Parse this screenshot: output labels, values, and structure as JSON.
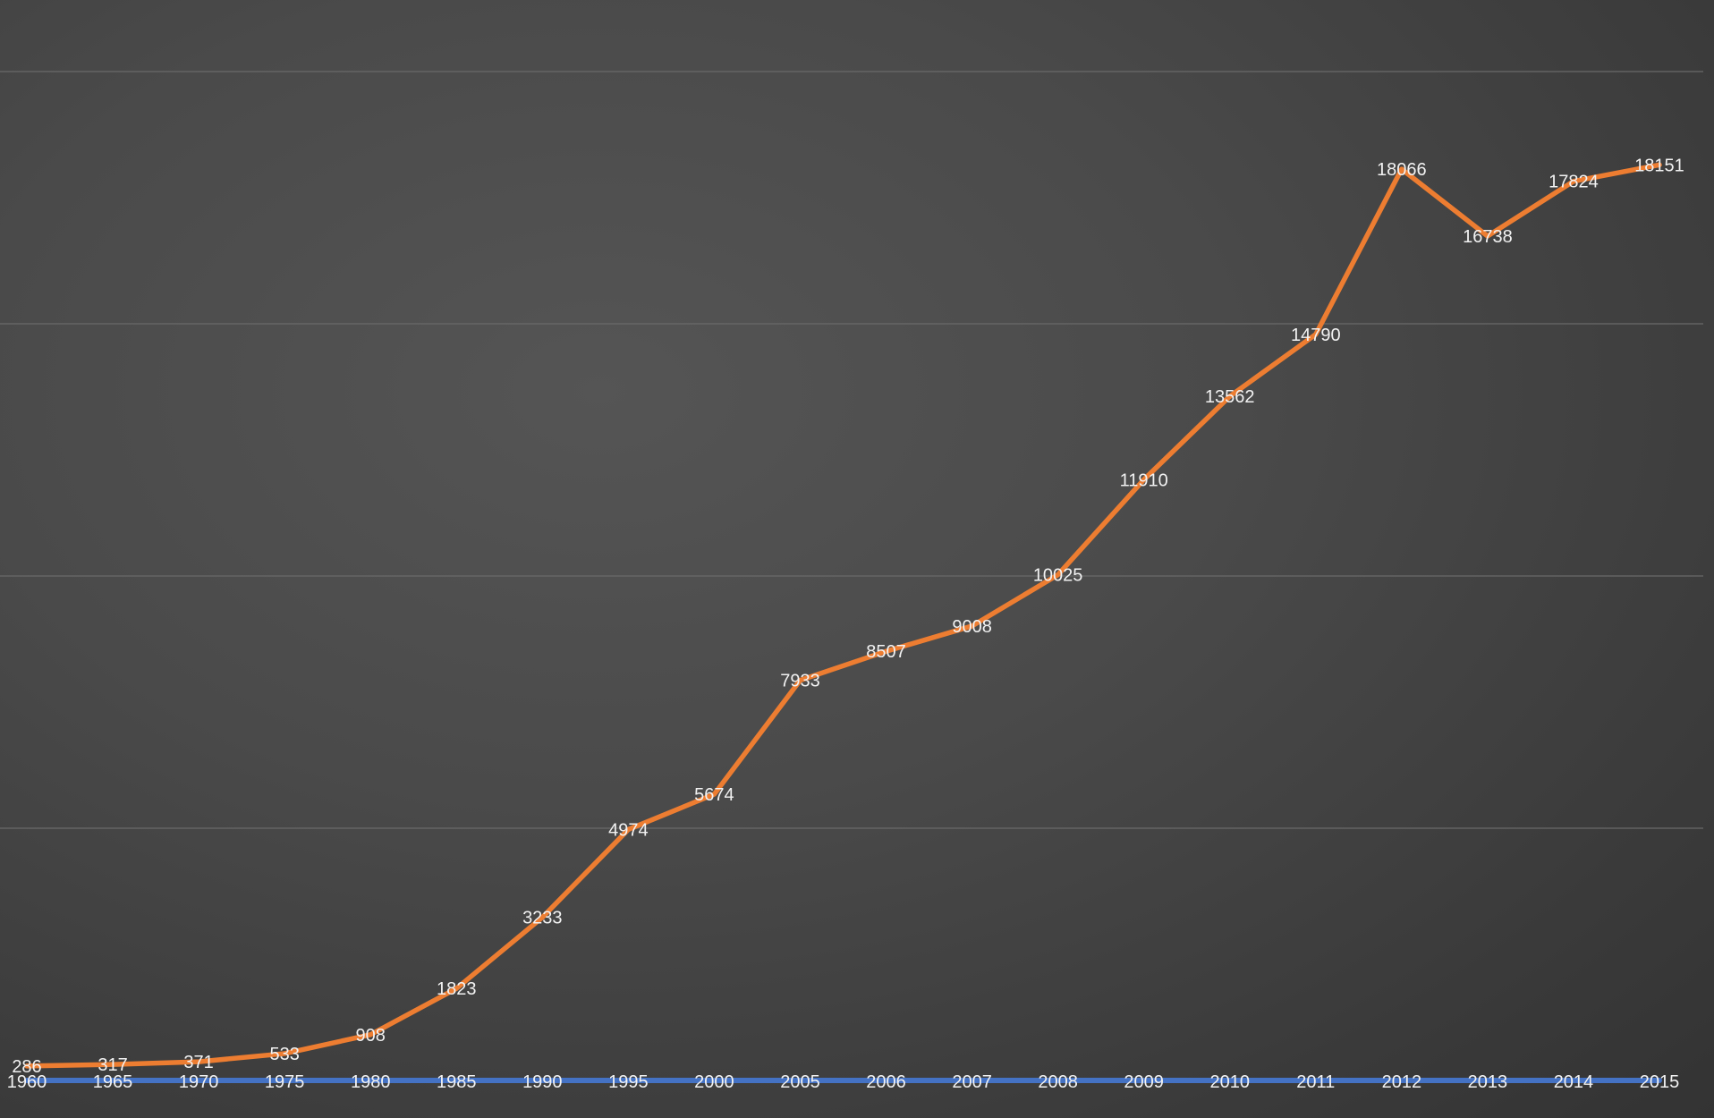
{
  "chart_data": {
    "type": "line",
    "title": "",
    "xlabel": "",
    "ylabel": "",
    "categories": [
      "1960",
      "1965",
      "1970",
      "1975",
      "1980",
      "1985",
      "1990",
      "1995",
      "2000",
      "2005",
      "2006",
      "2007",
      "2008",
      "2009",
      "2010",
      "2011",
      "2012",
      "2013",
      "2014",
      "2015"
    ],
    "ylim": [
      0,
      20000
    ],
    "grid": true,
    "legend": "none",
    "series": [
      {
        "color": "#4472C4",
        "values": [
          0,
          0,
          0,
          0,
          0,
          0,
          0,
          0,
          0,
          0,
          0,
          0,
          0,
          0,
          0,
          0,
          0,
          0,
          0,
          0
        ],
        "data_labels": false
      },
      {
        "color": "#ED7D31",
        "values": [
          286,
          317,
          371,
          533,
          908,
          1823,
          3233,
          4974,
          5674,
          7933,
          8507,
          9008,
          10025,
          11910,
          13562,
          14790,
          18066,
          16738,
          17824,
          18151
        ],
        "data_labels": true
      }
    ]
  }
}
